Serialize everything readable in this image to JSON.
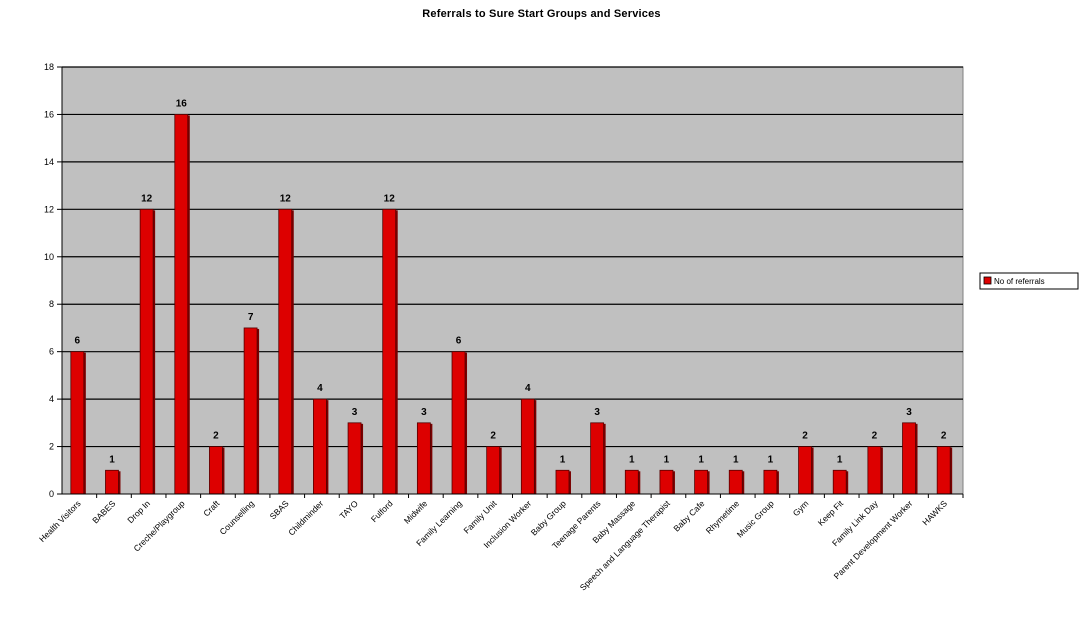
{
  "chart_data": {
    "type": "bar",
    "title": "Referrals to Sure Start Groups and Services",
    "categories": [
      "Health Visitors",
      "BABES",
      "Drop In",
      "Creche/Playgroup",
      "Craft",
      "Counselling",
      "SBAS",
      "Childminder",
      "TAYO",
      "Fulford",
      "Midwife",
      "Family Learning",
      "Family Unit",
      "Inclusion Worker",
      "Baby Group",
      "Teenage Parents",
      "Baby Massage",
      "Speech and Language Therapist",
      "Baby Cafe",
      "Rhymetime",
      "Music Group",
      "Gym",
      "Keep Fit",
      "Family Link Day",
      "Parent Development Worker",
      "HAWKS"
    ],
    "series": [
      {
        "name": "No of referrals",
        "values": [
          6,
          1,
          12,
          16,
          2,
          7,
          12,
          4,
          3,
          12,
          3,
          6,
          2,
          4,
          1,
          3,
          1,
          1,
          1,
          1,
          1,
          2,
          1,
          2,
          3,
          2
        ]
      }
    ],
    "ylim": [
      0,
      18
    ],
    "yticks": [
      0,
      2,
      4,
      6,
      8,
      10,
      12,
      14,
      16,
      18
    ],
    "xlabel": "",
    "ylabel": "",
    "grid": true,
    "legend_position": "right",
    "colors": {
      "bar": "#dd0000",
      "bar_shadow": "#7a0000",
      "plot_bg": "#c0c0c0",
      "gridline": "#000000"
    }
  }
}
